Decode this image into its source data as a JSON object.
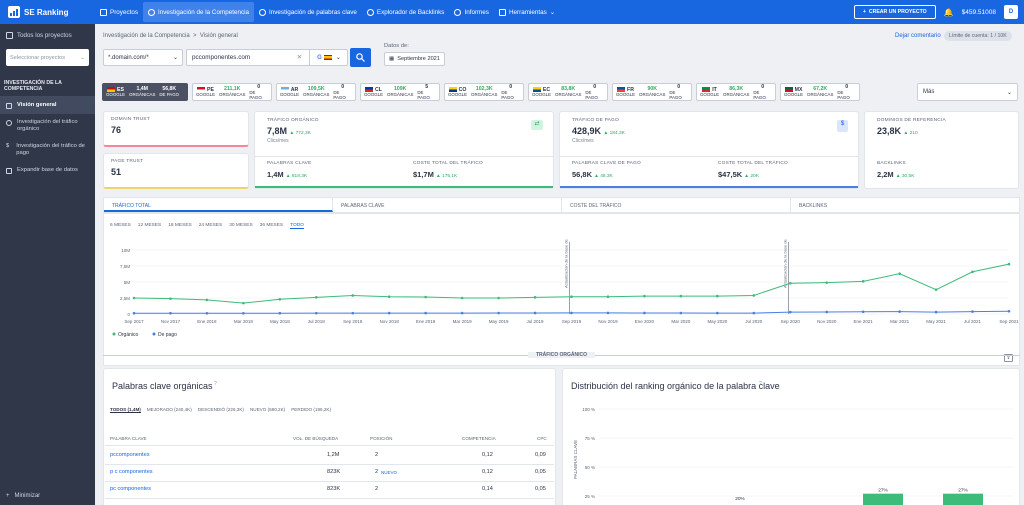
{
  "topbar": {
    "brand": "SE Ranking",
    "nav": [
      {
        "label": "Proyectos",
        "icon": "projects-icon"
      },
      {
        "label": "Investigación de la Competencia",
        "icon": "competitor-icon",
        "active": true
      },
      {
        "label": "Investigación de palabras clave",
        "icon": "keywords-icon"
      },
      {
        "label": "Explorador de Backlinks",
        "icon": "backlinks-icon"
      },
      {
        "label": "Informes",
        "icon": "reports-icon"
      },
      {
        "label": "Herramientas",
        "icon": "tools-icon"
      }
    ],
    "create_button": "CREAR UN PROYECTO",
    "balance": "$459.51008",
    "avatar": "D"
  },
  "sidebar": {
    "all_projects": "Todos los proyectos",
    "project_placeholder": "Seleccionar proyectos",
    "section": "INVESTIGACIÓN DE LA COMPETENCIA",
    "items": [
      {
        "label": "Visión general",
        "active": true
      },
      {
        "label": "Investigación del tráfico orgánico"
      },
      {
        "label": "Investigación del tráfico de pago"
      },
      {
        "label": "Expandir base de datos"
      }
    ],
    "minimize": "Minimizar"
  },
  "header": {
    "breadcrumb": [
      "Investigación de la Competencia",
      "Visión general"
    ],
    "feedback": "Dejar comentario",
    "limit": "Límite de cuenta: 1 / 10K"
  },
  "search": {
    "domain_mode": "*.domain.com/*",
    "url": "pccomponentes.com",
    "date_label": "Datos de:",
    "date": "Septiembre 2021"
  },
  "countries": [
    {
      "code": "ES",
      "organic": "1,4M",
      "paid": "56,8K",
      "selected": true,
      "colors": [
        "#c60b1e",
        "#ffc400"
      ]
    },
    {
      "code": "PE",
      "organic": "211,1K",
      "paid": "0",
      "colors": [
        "#d91023",
        "#ffffff"
      ]
    },
    {
      "code": "AR",
      "organic": "109,5K",
      "paid": "0",
      "colors": [
        "#74acdf",
        "#ffffff"
      ]
    },
    {
      "code": "CL",
      "organic": "109K",
      "paid": "5",
      "colors": [
        "#0039a6",
        "#d52b1e"
      ]
    },
    {
      "code": "CO",
      "organic": "102,3K",
      "paid": "0",
      "colors": [
        "#fcd116",
        "#003893"
      ]
    },
    {
      "code": "EC",
      "organic": "83,8K",
      "paid": "0",
      "colors": [
        "#ffd100",
        "#034ea2"
      ]
    },
    {
      "code": "FR",
      "organic": "90K",
      "paid": "0",
      "colors": [
        "#0055a4",
        "#ef4135"
      ]
    },
    {
      "code": "IT",
      "organic": "86,3K",
      "paid": "0",
      "colors": [
        "#009246",
        "#ce2b37"
      ]
    },
    {
      "code": "MX",
      "organic": "67,2K",
      "paid": "0",
      "colors": [
        "#006847",
        "#ce1126"
      ]
    }
  ],
  "country_labels": {
    "engine": "GOOGLE",
    "organic": "ORGÁNICAS",
    "paid": "DE PAGO"
  },
  "more": "Más",
  "metrics": {
    "domain_trust": {
      "label": "DOMAIN TRUST",
      "value": "76"
    },
    "page_trust": {
      "label": "PAGE TRUST",
      "value": "51"
    },
    "organic": {
      "label": "TRÁFICO ORGÁNICO",
      "value": "7,8M",
      "delta": "772,3K",
      "sub": "Clics/mes",
      "kw_label": "PALABRAS CLAVE",
      "kw_value": "1,4M",
      "kw_delta": "818,3K",
      "cost_label": "COSTE TOTAL DEL TRÁFICO",
      "cost_value": "$1,7M",
      "cost_delta": "175,1K"
    },
    "paid": {
      "label": "TRÁFICO DE PAGO",
      "value": "428,9K",
      "delta": "184,3K",
      "sub": "Clics/mes",
      "kw_label": "PALABRAS CLAVE DE PAGO",
      "kw_value": "56,8K",
      "kw_delta": "48,3K",
      "cost_label": "COSTE TOTAL DEL TRÁFICO",
      "cost_value": "$47,5K",
      "cost_delta": "20K"
    },
    "refs": {
      "label": "DOMINIOS DE REFERENCIA",
      "value": "23,8K",
      "delta": "210",
      "bl_label": "BACKLINKS",
      "bl_value": "2,2M",
      "bl_delta": "30,5K"
    }
  },
  "chart_tabs": [
    "TRÁFICO TOTAL",
    "PALABRAS CLAVE",
    "COSTE DEL TRÁFICO",
    "BACKLINKS"
  ],
  "periods": [
    "6 MESES",
    "12 MESES",
    "18 MESES",
    "24 MESES",
    "30 MESES",
    "36 MESES",
    "TODO"
  ],
  "chart_data": {
    "type": "line",
    "x": [
      "Sep 2017",
      "Nov 2017",
      "Ene 2018",
      "Mar 2018",
      "May 2018",
      "Jul 2018",
      "Sep 2018",
      "Nov 2018",
      "Ene 2019",
      "Mar 2019",
      "May 2019",
      "Jul 2019",
      "Sep 2019",
      "Nov 2019",
      "Ene 2020",
      "Mar 2020",
      "May 2020",
      "Jul 2020",
      "Sep 2020",
      "Nov 2020",
      "Ene 2021",
      "Mar 2021",
      "May 2021",
      "Jul 2021",
      "Sep 2021"
    ],
    "y_ticks": [
      "0",
      "2,5M",
      "5M",
      "7,5M",
      "10M"
    ],
    "ylim": [
      0,
      10000000
    ],
    "series": [
      {
        "name": "Orgánico",
        "color": "#3dbb79",
        "values": [
          2500000,
          2400000,
          2200000,
          1700000,
          2300000,
          2600000,
          2900000,
          2700000,
          2650000,
          2500000,
          2500000,
          2600000,
          2700000,
          2700000,
          2800000,
          2800000,
          2800000,
          2900000,
          4800000,
          4900000,
          5100000,
          6300000,
          3800000,
          6600000,
          7800000
        ]
      },
      {
        "name": "De pago",
        "color": "#4a7fe0",
        "values": [
          120000,
          120000,
          110000,
          110000,
          120000,
          130000,
          130000,
          140000,
          140000,
          140000,
          150000,
          160000,
          170000,
          170000,
          160000,
          150000,
          140000,
          140000,
          300000,
          320000,
          350000,
          380000,
          300000,
          380000,
          429000
        ]
      }
    ],
    "annotations": [
      "Actualización de la base de datos",
      "Actualización de la base de datos"
    ],
    "legend": "bottom-left"
  },
  "section_title": "TRÁFICO ORGÁNICO",
  "keywords": {
    "title": "Palabras clave orgánicas",
    "tabs": [
      "TODOS (1,4M)",
      "MEJORADO (240,4K)",
      "DESCENDIÓ (226,3K)",
      "NUEVO (580,2K)",
      "PERDIDO (196,2K)"
    ],
    "headers": [
      "PALABRA CLAVE",
      "VOL. DE BÚSQUEDA",
      "POSICIÓN",
      "COMPETENCIA",
      "CPC"
    ],
    "rows": [
      {
        "kw": "pccomponentes",
        "vol": "1,2M",
        "pos": "2",
        "tag": "",
        "comp": "0,12",
        "cpc": "0,09"
      },
      {
        "kw": "p c componentes",
        "vol": "823K",
        "pos": "2",
        "tag": "NUEVO",
        "comp": "0,12",
        "cpc": "0,05"
      },
      {
        "kw": "pc componentes",
        "vol": "823K",
        "pos": "2",
        "tag": "",
        "comp": "0,14",
        "cpc": "0,05"
      }
    ]
  },
  "distribution": {
    "title": "Distribución del ranking orgánico de la palabra clave",
    "ylabel": "PALABRAS CLAVE",
    "y_ticks": [
      "100 %",
      "75 %",
      "50 %",
      "25 %"
    ],
    "bars": [
      "20%",
      "27%",
      "27%"
    ]
  }
}
